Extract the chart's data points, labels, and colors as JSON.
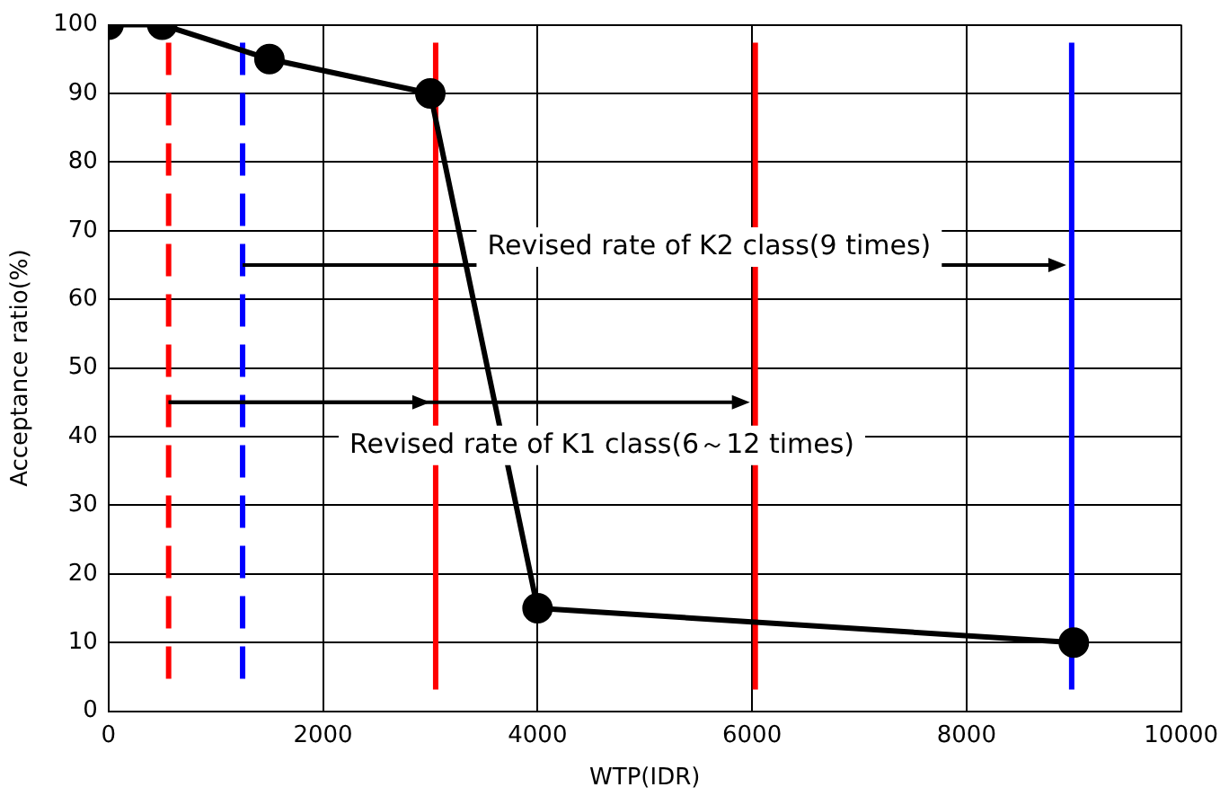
{
  "chart_data": {
    "type": "line",
    "xlabel": "WTP(IDR)",
    "ylabel": "Acceptance ratio(%)",
    "x": [
      0,
      500,
      1500,
      3000,
      4000,
      9000
    ],
    "series": [
      {
        "color": "#000000",
        "values": [
          100,
          100,
          95,
          90,
          15,
          10
        ]
      }
    ],
    "xlim": [
      0,
      10000
    ],
    "xticks": [
      0,
      2000,
      4000,
      6000,
      8000,
      10000
    ],
    "ylim": [
      0,
      100
    ],
    "yticks": [
      0,
      10,
      20,
      30,
      40,
      50,
      60,
      70,
      80,
      90,
      100
    ],
    "grid": true,
    "legend": false,
    "marker": "circle",
    "line_style": "solid",
    "ref_lines": [
      {
        "axis": "x",
        "value": 560,
        "color": "#ff0000",
        "line_style": "dashed"
      },
      {
        "axis": "x",
        "value": 1250,
        "color": "#0000ff",
        "line_style": "dashed"
      },
      {
        "axis": "x",
        "value": 3050,
        "color": "#ff0000",
        "line_style": "solid"
      },
      {
        "axis": "x",
        "value": 6030,
        "color": "#ff0000",
        "line_style": "solid"
      },
      {
        "axis": "x",
        "value": 8980,
        "color": "#0000ff",
        "line_style": "solid"
      }
    ],
    "annotations": [
      "Revised rate of K1 class(6～12 times)",
      "Revised rate of K2 class(9 times)"
    ]
  }
}
